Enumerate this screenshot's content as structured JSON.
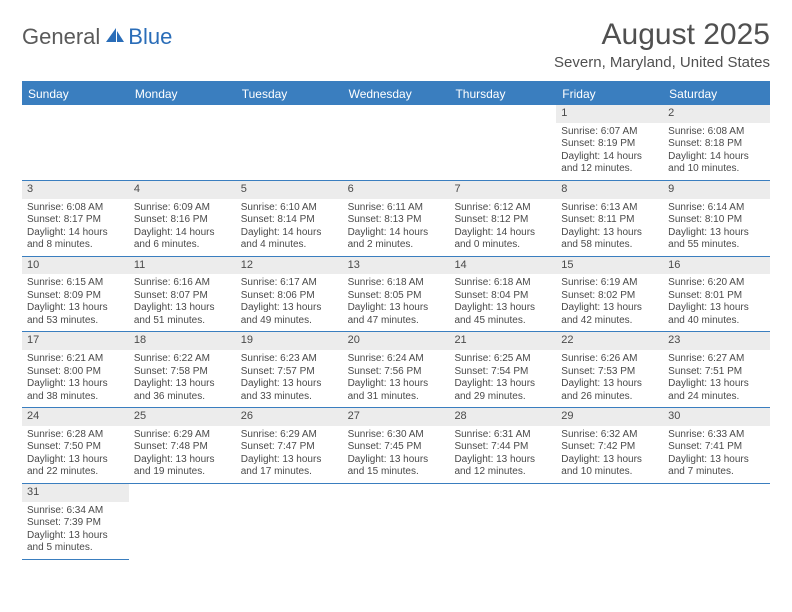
{
  "logo": {
    "text1": "General",
    "text2": "Blue"
  },
  "title": "August 2025",
  "location": "Severn, Maryland, United States",
  "colors": {
    "header_bar": "#3a7ebf",
    "daynum_bg": "#ececec",
    "text": "#4a4a4a",
    "border": "#3a7ebf"
  },
  "dow": [
    "Sunday",
    "Monday",
    "Tuesday",
    "Wednesday",
    "Thursday",
    "Friday",
    "Saturday"
  ],
  "weeks": [
    [
      {
        "n": "",
        "sunrise": "",
        "sunset": "",
        "daylight": ""
      },
      {
        "n": "",
        "sunrise": "",
        "sunset": "",
        "daylight": ""
      },
      {
        "n": "",
        "sunrise": "",
        "sunset": "",
        "daylight": ""
      },
      {
        "n": "",
        "sunrise": "",
        "sunset": "",
        "daylight": ""
      },
      {
        "n": "",
        "sunrise": "",
        "sunset": "",
        "daylight": ""
      },
      {
        "n": "1",
        "sunrise": "Sunrise: 6:07 AM",
        "sunset": "Sunset: 8:19 PM",
        "daylight": "Daylight: 14 hours and 12 minutes."
      },
      {
        "n": "2",
        "sunrise": "Sunrise: 6:08 AM",
        "sunset": "Sunset: 8:18 PM",
        "daylight": "Daylight: 14 hours and 10 minutes."
      }
    ],
    [
      {
        "n": "3",
        "sunrise": "Sunrise: 6:08 AM",
        "sunset": "Sunset: 8:17 PM",
        "daylight": "Daylight: 14 hours and 8 minutes."
      },
      {
        "n": "4",
        "sunrise": "Sunrise: 6:09 AM",
        "sunset": "Sunset: 8:16 PM",
        "daylight": "Daylight: 14 hours and 6 minutes."
      },
      {
        "n": "5",
        "sunrise": "Sunrise: 6:10 AM",
        "sunset": "Sunset: 8:14 PM",
        "daylight": "Daylight: 14 hours and 4 minutes."
      },
      {
        "n": "6",
        "sunrise": "Sunrise: 6:11 AM",
        "sunset": "Sunset: 8:13 PM",
        "daylight": "Daylight: 14 hours and 2 minutes."
      },
      {
        "n": "7",
        "sunrise": "Sunrise: 6:12 AM",
        "sunset": "Sunset: 8:12 PM",
        "daylight": "Daylight: 14 hours and 0 minutes."
      },
      {
        "n": "8",
        "sunrise": "Sunrise: 6:13 AM",
        "sunset": "Sunset: 8:11 PM",
        "daylight": "Daylight: 13 hours and 58 minutes."
      },
      {
        "n": "9",
        "sunrise": "Sunrise: 6:14 AM",
        "sunset": "Sunset: 8:10 PM",
        "daylight": "Daylight: 13 hours and 55 minutes."
      }
    ],
    [
      {
        "n": "10",
        "sunrise": "Sunrise: 6:15 AM",
        "sunset": "Sunset: 8:09 PM",
        "daylight": "Daylight: 13 hours and 53 minutes."
      },
      {
        "n": "11",
        "sunrise": "Sunrise: 6:16 AM",
        "sunset": "Sunset: 8:07 PM",
        "daylight": "Daylight: 13 hours and 51 minutes."
      },
      {
        "n": "12",
        "sunrise": "Sunrise: 6:17 AM",
        "sunset": "Sunset: 8:06 PM",
        "daylight": "Daylight: 13 hours and 49 minutes."
      },
      {
        "n": "13",
        "sunrise": "Sunrise: 6:18 AM",
        "sunset": "Sunset: 8:05 PM",
        "daylight": "Daylight: 13 hours and 47 minutes."
      },
      {
        "n": "14",
        "sunrise": "Sunrise: 6:18 AM",
        "sunset": "Sunset: 8:04 PM",
        "daylight": "Daylight: 13 hours and 45 minutes."
      },
      {
        "n": "15",
        "sunrise": "Sunrise: 6:19 AM",
        "sunset": "Sunset: 8:02 PM",
        "daylight": "Daylight: 13 hours and 42 minutes."
      },
      {
        "n": "16",
        "sunrise": "Sunrise: 6:20 AM",
        "sunset": "Sunset: 8:01 PM",
        "daylight": "Daylight: 13 hours and 40 minutes."
      }
    ],
    [
      {
        "n": "17",
        "sunrise": "Sunrise: 6:21 AM",
        "sunset": "Sunset: 8:00 PM",
        "daylight": "Daylight: 13 hours and 38 minutes."
      },
      {
        "n": "18",
        "sunrise": "Sunrise: 6:22 AM",
        "sunset": "Sunset: 7:58 PM",
        "daylight": "Daylight: 13 hours and 36 minutes."
      },
      {
        "n": "19",
        "sunrise": "Sunrise: 6:23 AM",
        "sunset": "Sunset: 7:57 PM",
        "daylight": "Daylight: 13 hours and 33 minutes."
      },
      {
        "n": "20",
        "sunrise": "Sunrise: 6:24 AM",
        "sunset": "Sunset: 7:56 PM",
        "daylight": "Daylight: 13 hours and 31 minutes."
      },
      {
        "n": "21",
        "sunrise": "Sunrise: 6:25 AM",
        "sunset": "Sunset: 7:54 PM",
        "daylight": "Daylight: 13 hours and 29 minutes."
      },
      {
        "n": "22",
        "sunrise": "Sunrise: 6:26 AM",
        "sunset": "Sunset: 7:53 PM",
        "daylight": "Daylight: 13 hours and 26 minutes."
      },
      {
        "n": "23",
        "sunrise": "Sunrise: 6:27 AM",
        "sunset": "Sunset: 7:51 PM",
        "daylight": "Daylight: 13 hours and 24 minutes."
      }
    ],
    [
      {
        "n": "24",
        "sunrise": "Sunrise: 6:28 AM",
        "sunset": "Sunset: 7:50 PM",
        "daylight": "Daylight: 13 hours and 22 minutes."
      },
      {
        "n": "25",
        "sunrise": "Sunrise: 6:29 AM",
        "sunset": "Sunset: 7:48 PM",
        "daylight": "Daylight: 13 hours and 19 minutes."
      },
      {
        "n": "26",
        "sunrise": "Sunrise: 6:29 AM",
        "sunset": "Sunset: 7:47 PM",
        "daylight": "Daylight: 13 hours and 17 minutes."
      },
      {
        "n": "27",
        "sunrise": "Sunrise: 6:30 AM",
        "sunset": "Sunset: 7:45 PM",
        "daylight": "Daylight: 13 hours and 15 minutes."
      },
      {
        "n": "28",
        "sunrise": "Sunrise: 6:31 AM",
        "sunset": "Sunset: 7:44 PM",
        "daylight": "Daylight: 13 hours and 12 minutes."
      },
      {
        "n": "29",
        "sunrise": "Sunrise: 6:32 AM",
        "sunset": "Sunset: 7:42 PM",
        "daylight": "Daylight: 13 hours and 10 minutes."
      },
      {
        "n": "30",
        "sunrise": "Sunrise: 6:33 AM",
        "sunset": "Sunset: 7:41 PM",
        "daylight": "Daylight: 13 hours and 7 minutes."
      }
    ],
    [
      {
        "n": "31",
        "sunrise": "Sunrise: 6:34 AM",
        "sunset": "Sunset: 7:39 PM",
        "daylight": "Daylight: 13 hours and 5 minutes."
      },
      {
        "n": "",
        "sunrise": "",
        "sunset": "",
        "daylight": ""
      },
      {
        "n": "",
        "sunrise": "",
        "sunset": "",
        "daylight": ""
      },
      {
        "n": "",
        "sunrise": "",
        "sunset": "",
        "daylight": ""
      },
      {
        "n": "",
        "sunrise": "",
        "sunset": "",
        "daylight": ""
      },
      {
        "n": "",
        "sunrise": "",
        "sunset": "",
        "daylight": ""
      },
      {
        "n": "",
        "sunrise": "",
        "sunset": "",
        "daylight": ""
      }
    ]
  ]
}
